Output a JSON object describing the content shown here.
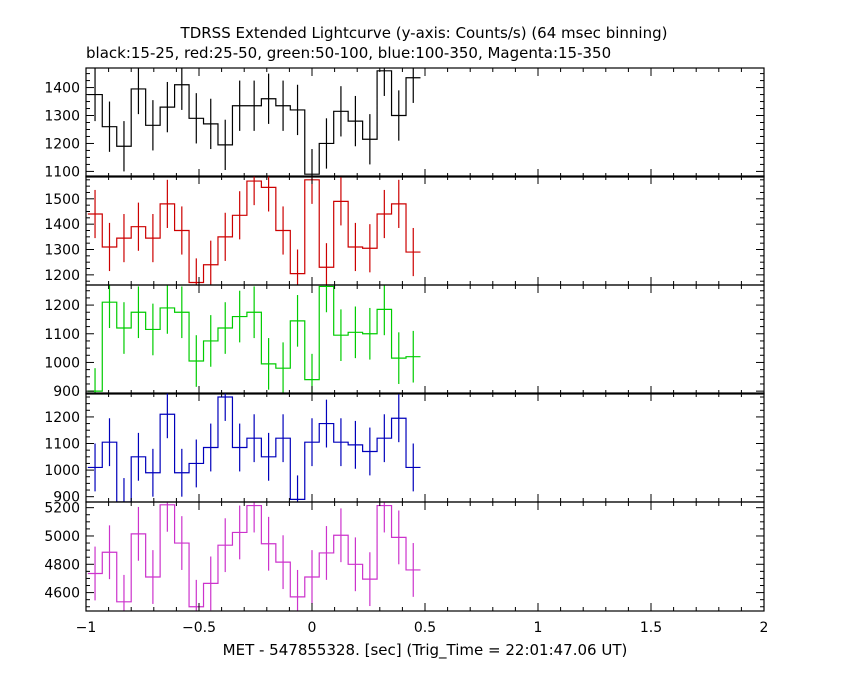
{
  "title": "TDRSS Extended Lightcurve (y-axis: Counts/s) (64 msec binning)",
  "subtitle": "black:15-25, red:25-50, green:50-100, blue:100-350, Magenta:15-350",
  "xlabel": "MET - 547855328. [sec] (Trig_Time = 22:01:47.06 UT)",
  "chart_data": {
    "type": "line",
    "title": "TDRSS Extended Lightcurve (y-axis: Counts/s) (64 msec binning)",
    "subtitle": "black:15-25, red:25-50, green:50-100, blue:100-350, Magenta:15-350",
    "xlabel": "MET - 547855328. [sec] (Trig_Time = 22:01:47.06 UT)",
    "xlim": [
      -1,
      2
    ],
    "x_ticks": [
      -1,
      -0.5,
      0,
      0.5,
      1,
      1.5,
      2
    ],
    "x_tick_labels": [
      "−1",
      "−0.5",
      "0",
      "0.5",
      "1",
      "1.5",
      "2"
    ],
    "bin_width": 0.064,
    "x_start": -0.992,
    "panels": [
      {
        "name": "black:15-25",
        "color": "#000000",
        "ylim": [
          1080,
          1470
        ],
        "y_ticks": [
          1100,
          1200,
          1300,
          1400
        ],
        "values": [
          1375,
          1260,
          1190,
          1395,
          1265,
          1330,
          1410,
          1290,
          1270,
          1195,
          1335,
          1335,
          1360,
          1335,
          1320,
          1090,
          1200,
          1315,
          1280,
          1215,
          1460,
          1300,
          1435
        ],
        "errors": [
          95,
          90,
          90,
          90,
          90,
          90,
          90,
          90,
          90,
          90,
          90,
          90,
          90,
          90,
          90,
          90,
          90,
          90,
          90,
          90,
          90,
          90,
          90
        ]
      },
      {
        "name": "red:25-50",
        "color": "#cc0000",
        "ylim": [
          1160,
          1590
        ],
        "y_ticks": [
          1200,
          1300,
          1400,
          1500
        ],
        "values": [
          1440,
          1310,
          1345,
          1390,
          1345,
          1480,
          1375,
          1170,
          1240,
          1350,
          1435,
          1570,
          1545,
          1375,
          1205,
          1575,
          1230,
          1490,
          1310,
          1305,
          1440,
          1480,
          1290
        ],
        "errors": [
          95,
          95,
          95,
          95,
          95,
          95,
          95,
          95,
          95,
          95,
          95,
          95,
          95,
          95,
          95,
          95,
          95,
          95,
          95,
          95,
          95,
          95,
          95
        ]
      },
      {
        "name": "green:50-100",
        "color": "#00cc00",
        "ylim": [
          890,
          1270
        ],
        "y_ticks": [
          900,
          1000,
          1100,
          1200
        ],
        "values": [
          900,
          1210,
          1120,
          1175,
          1115,
          1190,
          1175,
          1005,
          1075,
          1120,
          1160,
          1175,
          995,
          980,
          1145,
          940,
          1265,
          1095,
          1105,
          1100,
          1185,
          1015,
          1020
        ],
        "errors": [
          80,
          90,
          90,
          90,
          90,
          90,
          90,
          90,
          90,
          90,
          90,
          90,
          90,
          90,
          90,
          90,
          90,
          90,
          90,
          90,
          90,
          90,
          90
        ]
      },
      {
        "name": "blue:100-350",
        "color": "#0000bb",
        "ylim": [
          880,
          1290
        ],
        "y_ticks": [
          900,
          1000,
          1100,
          1200
        ],
        "values": [
          1010,
          1105,
          880,
          1050,
          990,
          1210,
          990,
          1025,
          1085,
          1275,
          1085,
          1120,
          1050,
          1120,
          890,
          1105,
          1175,
          1105,
          1095,
          1070,
          1120,
          1195,
          1010
        ],
        "errors": [
          90,
          90,
          90,
          90,
          90,
          90,
          90,
          90,
          90,
          90,
          90,
          90,
          90,
          90,
          90,
          90,
          90,
          90,
          90,
          90,
          90,
          90,
          90
        ]
      },
      {
        "name": "Magenta:15-350",
        "color": "#cc33cc",
        "ylim": [
          4470,
          5240
        ],
        "y_ticks": [
          4600,
          4800,
          5000,
          5200
        ],
        "values": [
          4735,
          4885,
          4535,
          5015,
          4710,
          5220,
          4950,
          4500,
          4665,
          4935,
          5025,
          5215,
          4945,
          4815,
          4570,
          4710,
          4880,
          5005,
          4800,
          4695,
          5215,
          4990,
          4760
        ],
        "errors": [
          190,
          190,
          190,
          190,
          190,
          190,
          190,
          190,
          190,
          190,
          190,
          190,
          190,
          190,
          190,
          190,
          190,
          190,
          190,
          190,
          190,
          190,
          190
        ]
      }
    ]
  }
}
